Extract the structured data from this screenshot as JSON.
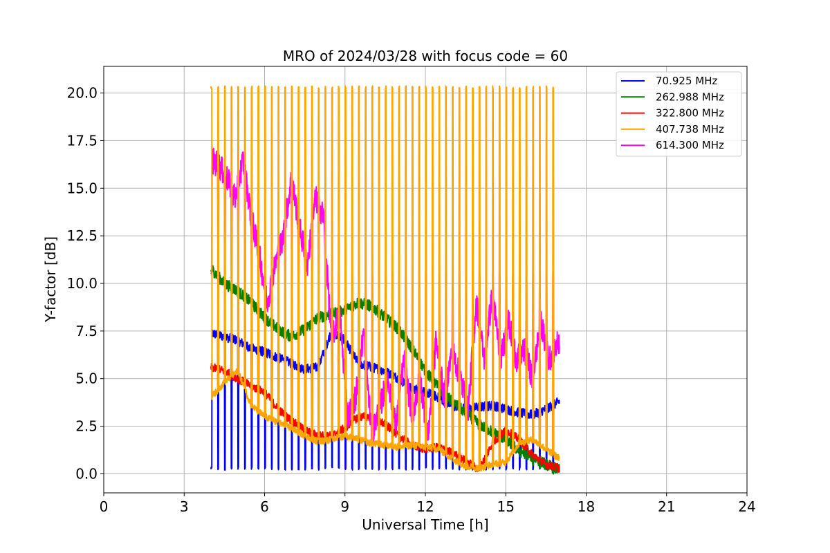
{
  "chart_data": {
    "type": "line",
    "title": "MRO of 2024/03/28 with focus code = 60",
    "xlabel": "Universal Time [h]",
    "ylabel": "Y-factor [dB]",
    "xlim": [
      0,
      24
    ],
    "ylim": [
      -1.0,
      21.4
    ],
    "xticks": [
      0,
      3,
      6,
      9,
      12,
      15,
      18,
      21,
      24
    ],
    "xtick_labels": [
      "0",
      "3",
      "6",
      "9",
      "12",
      "15",
      "18",
      "21",
      "24"
    ],
    "yticks": [
      0,
      2.5,
      5,
      7.5,
      10,
      12.5,
      15,
      17.5,
      20
    ],
    "ytick_labels": [
      "0.0",
      "2.5",
      "5.0",
      "7.5",
      "10.0",
      "12.5",
      "15.0",
      "17.5",
      "20.0"
    ],
    "grid": true,
    "legend_position": "top-right",
    "x_range_data": [
      4.0,
      17.0
    ],
    "calibration_spikes": {
      "start": 4.0,
      "end": 16.8,
      "period_h": 0.25,
      "orange_peak": 20.3,
      "magenta_peak": 10.5,
      "blue_floor": 0.2
    },
    "series": [
      {
        "name": "  70.925 MHz",
        "color": "#0000ff",
        "x": [
          4.0,
          4.5,
          5.0,
          5.5,
          6.0,
          6.5,
          7.0,
          7.5,
          8.0,
          8.5,
          9.0,
          9.5,
          10.0,
          10.5,
          11.0,
          11.5,
          12.0,
          12.5,
          13.0,
          13.5,
          14.0,
          14.5,
          15.0,
          15.5,
          16.0,
          16.5,
          17.0
        ],
        "values": [
          7.4,
          7.2,
          7.0,
          6.6,
          6.4,
          6.1,
          5.8,
          5.5,
          5.6,
          7.5,
          7.0,
          5.8,
          5.6,
          5.4,
          5.0,
          4.5,
          4.3,
          4.0,
          3.6,
          3.4,
          3.5,
          3.6,
          3.4,
          3.2,
          3.1,
          3.4,
          3.8
        ],
        "noise": 0.25
      },
      {
        "name": "262.988 MHz",
        "color": "#008000",
        "x": [
          4.0,
          4.5,
          5.0,
          5.5,
          6.0,
          6.5,
          7.0,
          7.5,
          8.0,
          8.5,
          9.0,
          9.5,
          10.0,
          10.5,
          11.0,
          11.5,
          12.0,
          12.5,
          13.0,
          13.5,
          14.0,
          14.5,
          15.0,
          15.5,
          16.0,
          16.5,
          17.0
        ],
        "values": [
          10.8,
          10.0,
          9.6,
          9.0,
          8.2,
          7.6,
          7.2,
          7.6,
          8.2,
          8.4,
          8.6,
          9.0,
          8.8,
          8.2,
          7.6,
          6.6,
          5.4,
          4.5,
          3.8,
          3.2,
          2.6,
          2.2,
          1.8,
          1.2,
          0.9,
          0.5,
          0.2
        ],
        "noise": 0.3
      },
      {
        "name": "322.800 MHz",
        "color": "#ff0000",
        "x": [
          4.0,
          4.5,
          5.0,
          5.5,
          6.0,
          6.5,
          7.0,
          7.5,
          8.0,
          8.5,
          9.0,
          9.5,
          10.0,
          10.5,
          11.0,
          11.5,
          12.0,
          12.5,
          13.0,
          13.5,
          14.0,
          14.5,
          15.0,
          15.5,
          16.0,
          16.5,
          17.0
        ],
        "values": [
          5.6,
          5.4,
          5.0,
          4.6,
          4.3,
          3.4,
          2.8,
          2.3,
          2.0,
          2.0,
          2.4,
          3.0,
          3.0,
          2.6,
          2.0,
          1.5,
          1.3,
          1.4,
          1.1,
          0.7,
          0.2,
          1.6,
          2.3,
          1.8,
          1.0,
          0.5,
          0.3
        ],
        "noise": 0.22
      },
      {
        "name": "407.738 MHz",
        "color": "#ffa500",
        "x": [
          4.0,
          4.5,
          5.0,
          5.5,
          6.0,
          6.5,
          7.0,
          7.5,
          8.0,
          8.5,
          9.0,
          9.5,
          10.0,
          10.5,
          11.0,
          11.5,
          12.0,
          12.5,
          13.0,
          13.5,
          14.0,
          14.5,
          15.0,
          15.5,
          16.0,
          16.5,
          17.0
        ],
        "values": [
          4.0,
          4.8,
          5.4,
          3.6,
          3.0,
          2.7,
          2.4,
          2.0,
          1.7,
          1.8,
          2.0,
          1.8,
          1.6,
          1.5,
          1.4,
          1.5,
          1.4,
          1.3,
          0.8,
          0.4,
          0.3,
          0.5,
          0.6,
          1.6,
          1.8,
          1.3,
          0.8
        ],
        "noise": 0.18
      },
      {
        "name": "614.300 MHz",
        "color": "#ff00ff",
        "x": [
          4.0,
          4.3,
          4.6,
          4.9,
          5.2,
          5.5,
          5.8,
          6.1,
          6.4,
          6.7,
          7.0,
          7.3,
          7.6,
          7.9,
          8.2,
          8.5,
          8.8,
          9.1,
          9.4,
          9.7,
          10.0,
          10.3,
          10.6,
          10.9,
          11.2,
          11.5,
          11.8,
          12.1,
          12.4,
          12.7,
          13.0,
          13.3,
          13.6,
          13.9,
          14.2,
          14.5,
          14.8,
          15.1,
          15.4,
          15.7,
          16.0,
          16.3,
          16.6,
          17.0
        ],
        "values": [
          16.5,
          16.2,
          15.5,
          14.5,
          16.5,
          13.5,
          11.5,
          9.0,
          11.0,
          12.5,
          15.5,
          13.0,
          11.0,
          14.5,
          13.5,
          7.0,
          8.5,
          3.0,
          4.0,
          7.5,
          2.0,
          3.5,
          5.0,
          2.5,
          6.0,
          3.0,
          5.0,
          2.0,
          7.0,
          4.0,
          6.5,
          5.0,
          3.5,
          9.0,
          6.0,
          9.5,
          6.0,
          8.0,
          6.0,
          6.5,
          5.0,
          8.0,
          6.0,
          7.0
        ],
        "noise": 0.7
      }
    ]
  }
}
